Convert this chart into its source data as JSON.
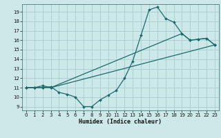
{
  "bg_color": "#cce8e8",
  "grid_color": "#aacccc",
  "line_color": "#1a6b6b",
  "xlabel": "Humidex (Indice chaleur)",
  "xlim": [
    -0.5,
    23.5
  ],
  "ylim": [
    8.6,
    19.8
  ],
  "xticks": [
    0,
    1,
    2,
    3,
    4,
    5,
    6,
    7,
    8,
    9,
    10,
    11,
    12,
    13,
    14,
    15,
    16,
    17,
    18,
    19,
    20,
    21,
    22,
    23
  ],
  "yticks": [
    9,
    10,
    11,
    12,
    13,
    14,
    15,
    16,
    17,
    18,
    19
  ],
  "line1": {
    "x": [
      0,
      1,
      2,
      3,
      4,
      5,
      6,
      7,
      8,
      9,
      10,
      11,
      12,
      13,
      14,
      15,
      16,
      17,
      18,
      19,
      20,
      21,
      22,
      23
    ],
    "y": [
      11,
      11,
      11,
      11.1,
      10.5,
      10.3,
      10,
      9.0,
      9.0,
      9.7,
      10.2,
      10.7,
      12,
      13.8,
      16.5,
      19.2,
      19.5,
      18.3,
      17.9,
      16.7,
      16.0,
      16.1,
      16.2,
      15.5
    ]
  },
  "line2": {
    "x": [
      0,
      1,
      2,
      3,
      23
    ],
    "y": [
      11,
      11,
      11,
      11,
      15.5
    ]
  },
  "line3": {
    "x": [
      0,
      1,
      2,
      3,
      19,
      20,
      21,
      22,
      23
    ],
    "y": [
      11,
      11,
      11.2,
      11,
      16.7,
      16.0,
      16.1,
      16.2,
      15.5
    ]
  }
}
